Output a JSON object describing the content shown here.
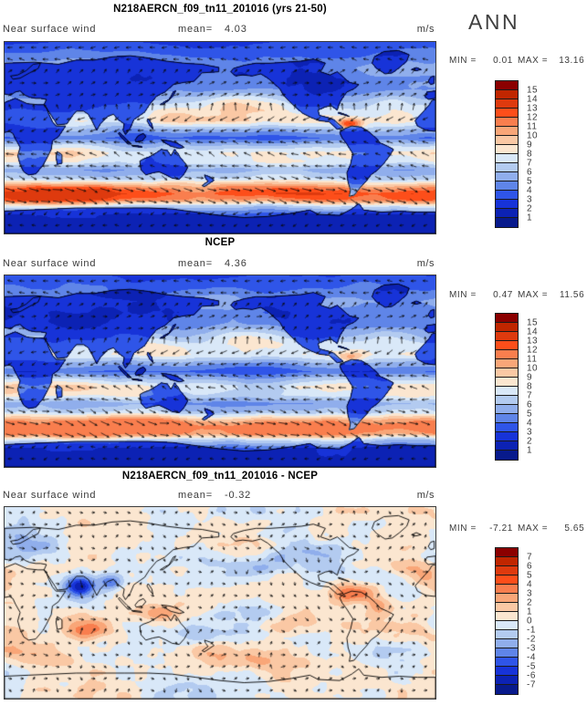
{
  "labels": {
    "variable": "Near surface wind",
    "mean": "mean=",
    "units": "m/s",
    "min": "MIN =",
    "max": "MAX =",
    "season": "ANN"
  },
  "chart_data": {
    "type": "heatmap",
    "description": "Three-panel global map figure of annual-mean near-surface wind speed (m/s) shown as filled color contours with wind vector arrows and coastlines: climate model run (yrs 21-50), NCEP reanalysis, and model minus NCEP difference. Each panel has its own MIN/MAX readout and a 16-segment blue-to-red colorbar.",
    "projection": "global cylindrical (0-360E, 90N-90S)",
    "season": "ANN",
    "units": "m/s",
    "palette_high_to_low": [
      "#8b0000",
      "#c02600",
      "#de3a0e",
      "#fd4e1a",
      "#f97e4e",
      "#f9a678",
      "#fac8a4",
      "#fbe6d0",
      "#d9e8f8",
      "#b3cbf0",
      "#90aeec",
      "#5f85e8",
      "#2f55e8",
      "#1733d8",
      "#0c22b4",
      "#081a8c"
    ],
    "panels": [
      {
        "title": "N218AERCN_f09_tn11_201016 (yrs 21-50)",
        "kind": "absolute",
        "variable": "Near surface wind",
        "mean": 4.03,
        "min": 0.01,
        "max": 13.16,
        "colorbar_ticks": [
          15,
          14,
          13,
          12,
          11,
          10,
          9,
          8,
          7,
          6,
          5,
          4,
          3,
          2,
          1
        ]
      },
      {
        "title": "NCEP",
        "kind": "absolute",
        "variable": "Near surface wind",
        "mean": 4.36,
        "min": 0.47,
        "max": 11.56,
        "colorbar_ticks": [
          15,
          14,
          13,
          12,
          11,
          10,
          9,
          8,
          7,
          6,
          5,
          4,
          3,
          2,
          1
        ]
      },
      {
        "title": "N218AERCN_f09_tn11_201016 - NCEP",
        "kind": "difference",
        "variable": "Near surface wind",
        "mean": -0.32,
        "min": -7.21,
        "max": 5.65,
        "colorbar_ticks": [
          7,
          6,
          5,
          4,
          3,
          2,
          1,
          0,
          -1,
          -2,
          -3,
          -4,
          -5,
          -6,
          -7
        ]
      }
    ]
  }
}
